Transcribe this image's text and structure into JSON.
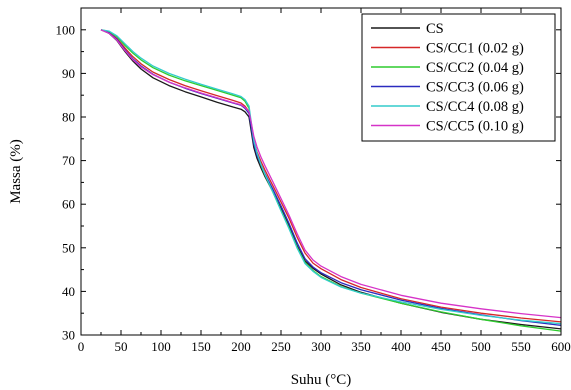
{
  "chart_data": {
    "type": "line",
    "title": "",
    "xlabel": "Suhu (°C)",
    "ylabel": "Massa (%)",
    "xlim": [
      0,
      600
    ],
    "ylim": [
      30,
      105
    ],
    "xticks": [
      0,
      50,
      100,
      150,
      200,
      250,
      300,
      350,
      400,
      450,
      500,
      550,
      600
    ],
    "yticks": [
      30,
      40,
      50,
      60,
      70,
      80,
      90,
      100
    ],
    "grid": false,
    "legend_position": "top-right",
    "series": [
      {
        "name": "CS",
        "color": "#1a1a1a",
        "x": [
          25,
          35,
          45,
          55,
          65,
          75,
          90,
          110,
          130,
          150,
          170,
          190,
          200,
          205,
          210,
          213,
          216,
          220,
          225,
          230,
          240,
          250,
          260,
          270,
          280,
          290,
          300,
          325,
          350,
          400,
          450,
          500,
          550,
          600
        ],
        "y": [
          100,
          99.2,
          97.5,
          95,
          92.8,
          91,
          89,
          87.2,
          85.8,
          84.6,
          83.4,
          82.3,
          81.8,
          81.2,
          80,
          76.5,
          73,
          70.5,
          68.3,
          66.3,
          62.8,
          59,
          55,
          50.5,
          47,
          45.3,
          44,
          41.5,
          39.8,
          37.3,
          35.2,
          33.6,
          32.4,
          31.4
        ]
      },
      {
        "name": "CS/CC1 (0.02 g)",
        "color": "#d62728",
        "x": [
          25,
          35,
          45,
          55,
          65,
          75,
          90,
          110,
          130,
          150,
          170,
          190,
          200,
          205,
          210,
          213,
          216,
          220,
          225,
          230,
          240,
          250,
          260,
          270,
          280,
          290,
          300,
          325,
          350,
          400,
          450,
          500,
          550,
          600
        ],
        "y": [
          100,
          99.4,
          98,
          95.8,
          93.8,
          92.2,
          90.3,
          88.6,
          87.2,
          86,
          84.9,
          83.8,
          83.2,
          82.5,
          81.2,
          78,
          74.5,
          72,
          69.8,
          67.8,
          64.2,
          60.5,
          56.8,
          52.5,
          48.8,
          46.5,
          45.2,
          42.7,
          40.9,
          38.3,
          36.4,
          35,
          33.9,
          33
        ]
      },
      {
        "name": "CS/CC2 (0.04 g)",
        "color": "#2ecc2e",
        "x": [
          25,
          35,
          45,
          55,
          65,
          75,
          90,
          110,
          130,
          150,
          170,
          190,
          200,
          205,
          210,
          213,
          216,
          220,
          225,
          230,
          240,
          250,
          260,
          270,
          280,
          290,
          300,
          325,
          350,
          400,
          450,
          500,
          550,
          600
        ],
        "y": [
          100,
          99.6,
          98.4,
          96.4,
          94.6,
          93.1,
          91.3,
          89.6,
          88.3,
          87.2,
          86.1,
          85,
          84.4,
          83.6,
          82,
          78,
          74.2,
          71.4,
          68.9,
          66.7,
          62.7,
          58.6,
          54.6,
          50.2,
          46.6,
          44.8,
          43.4,
          41.1,
          39.6,
          37.3,
          35.3,
          33.6,
          32.1,
          30.9
        ]
      },
      {
        "name": "CS/CC3 (0.06 g)",
        "color": "#2b2bbf",
        "x": [
          25,
          35,
          45,
          55,
          65,
          75,
          90,
          110,
          130,
          150,
          170,
          190,
          200,
          205,
          210,
          213,
          216,
          220,
          225,
          230,
          240,
          250,
          260,
          270,
          280,
          290,
          300,
          325,
          350,
          400,
          450,
          500,
          550,
          600
        ],
        "y": [
          100,
          99.3,
          97.8,
          95.4,
          93.3,
          91.7,
          89.8,
          88,
          86.6,
          85.4,
          84.3,
          83.2,
          82.7,
          82,
          80.8,
          77.4,
          73.8,
          71.2,
          69,
          67,
          63.4,
          59.6,
          55.6,
          51.2,
          47.5,
          45.6,
          44.3,
          42,
          40.4,
          38,
          36.1,
          34.6,
          33.3,
          32.2
        ]
      },
      {
        "name": "CS/CC4 (0.08 g)",
        "color": "#33cccc",
        "x": [
          25,
          35,
          45,
          55,
          65,
          75,
          90,
          110,
          130,
          150,
          170,
          190,
          200,
          205,
          210,
          213,
          216,
          220,
          225,
          230,
          240,
          250,
          260,
          270,
          280,
          290,
          300,
          325,
          350,
          400,
          450,
          500,
          550,
          600
        ],
        "y": [
          100,
          99.7,
          98.6,
          96.8,
          95,
          93.5,
          91.7,
          90,
          88.7,
          87.5,
          86.4,
          85.3,
          84.7,
          84,
          82.5,
          78.6,
          74.6,
          71.7,
          69.1,
          66.8,
          62.7,
          58.5,
          54.4,
          50,
          46.4,
          44.6,
          43.2,
          41,
          39.6,
          37.6,
          35.9,
          34.5,
          33.4,
          32.6
        ]
      },
      {
        "name": "CS/CC5 (0.10 g)",
        "color": "#d633c8",
        "x": [
          25,
          35,
          45,
          55,
          65,
          75,
          90,
          110,
          130,
          150,
          170,
          190,
          200,
          205,
          210,
          213,
          216,
          220,
          225,
          230,
          240,
          250,
          260,
          270,
          280,
          290,
          300,
          325,
          350,
          400,
          450,
          500,
          550,
          600
        ],
        "y": [
          100,
          99.2,
          97.6,
          95.2,
          93.1,
          91.5,
          89.7,
          88,
          86.7,
          85.5,
          84.4,
          83.3,
          82.8,
          82.2,
          81.2,
          78.5,
          75.6,
          73.1,
          70.8,
          68.8,
          65.1,
          61.3,
          57.5,
          53.3,
          49.5,
          47.2,
          45.8,
          43.4,
          41.6,
          39.1,
          37.3,
          36,
          34.9,
          34
        ]
      }
    ]
  }
}
